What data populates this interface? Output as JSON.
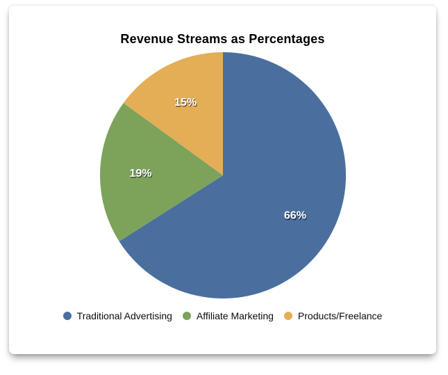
{
  "card": {
    "background": "#ffffff"
  },
  "chart_data": {
    "type": "pie",
    "title": "Revenue Streams as Percentages",
    "slices": [
      {
        "label": "Traditional Advertising",
        "value": 66,
        "display": "66%",
        "color": "#4A6F9E"
      },
      {
        "label": "Affiliate Marketing",
        "value": 19,
        "display": "19%",
        "color": "#7DA35B"
      },
      {
        "label": "Products/Freelance",
        "value": 15,
        "display": "15%",
        "color": "#E4AE56"
      }
    ],
    "start_angle_deg_clockwise_from_top": 0,
    "label_distance_fraction": 0.67,
    "label_color": "#ffffff",
    "legend_position": "bottom",
    "grid": false
  }
}
